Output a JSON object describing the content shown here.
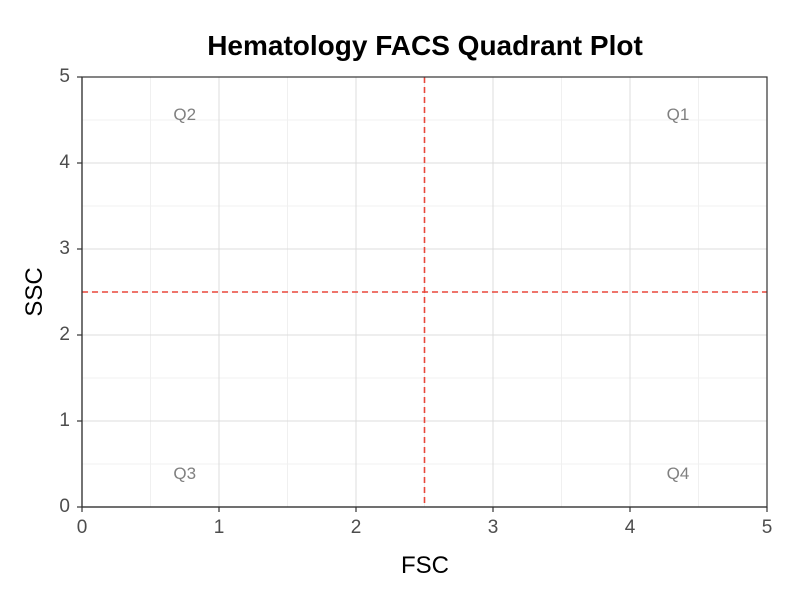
{
  "chart_data": {
    "type": "scatter",
    "title": "Hematology FACS Quadrant Plot",
    "xlabel": "FSC",
    "ylabel": "SSC",
    "xlim": [
      0,
      5
    ],
    "ylim": [
      0,
      5
    ],
    "x_ticks": [
      0,
      1,
      2,
      3,
      4,
      5
    ],
    "y_ticks": [
      0,
      1,
      2,
      3,
      4,
      5
    ],
    "minor_step": 0.5,
    "grid": true,
    "gate_x": 2.5,
    "gate_y": 2.5,
    "gate_color": "#e8473a",
    "series": [],
    "quadrants": [
      {
        "label": "Q1",
        "x": 4.35,
        "y": 4.55
      },
      {
        "label": "Q2",
        "x": 0.75,
        "y": 4.55
      },
      {
        "label": "Q3",
        "x": 0.75,
        "y": 0.38
      },
      {
        "label": "Q4",
        "x": 4.35,
        "y": 0.38
      }
    ]
  }
}
